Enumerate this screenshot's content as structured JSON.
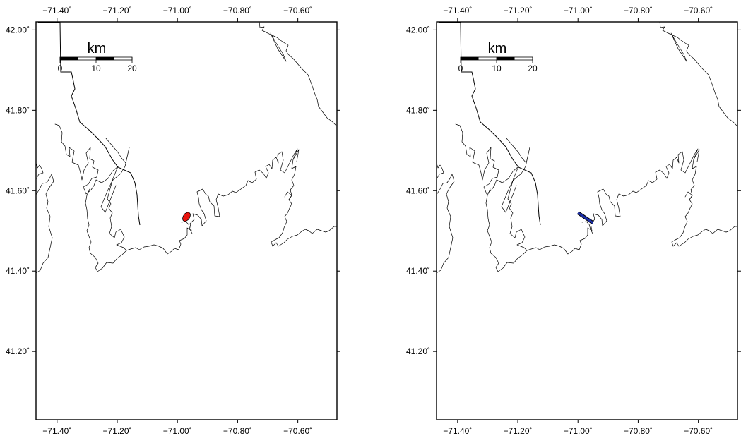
{
  "maps": [
    {
      "id": "left",
      "x_ticks": [
        "−71.40˚",
        "−71.20˚",
        "−71.00˚",
        "−70.80˚",
        "−70.60˚"
      ],
      "y_ticks": [
        "42.00˚",
        "41.80˚",
        "41.60˚",
        "41.40˚",
        "41.20˚"
      ],
      "scale_bar": {
        "unit": "km",
        "labels": [
          "0",
          "10",
          "20"
        ]
      },
      "marker": {
        "shape": "ellipse",
        "color": "#e8140e",
        "lon": -70.97,
        "lat": 41.535
      }
    },
    {
      "id": "right",
      "x_ticks": [
        "−71.40˚",
        "−71.20˚",
        "−71.00˚",
        "−70.80˚",
        "−70.60˚"
      ],
      "y_ticks": [
        "42.00˚",
        "41.80˚",
        "41.60˚",
        "41.40˚",
        "41.20˚"
      ],
      "scale_bar": {
        "unit": "km",
        "labels": [
          "0",
          "10",
          "20"
        ]
      },
      "marker": {
        "shape": "line",
        "color": "#1c2fa8",
        "from": [
          -71.0,
          41.545
        ],
        "to": [
          -70.95,
          41.52
        ]
      }
    }
  ]
}
